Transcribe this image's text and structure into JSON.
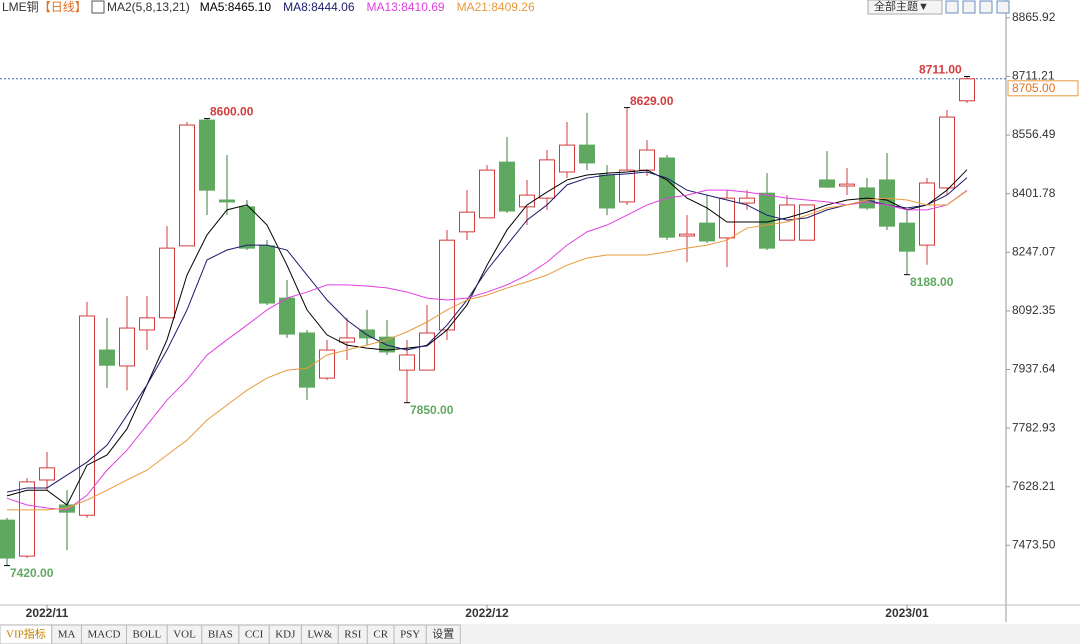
{
  "chart_data": {
    "type": "candlestick",
    "title": "LME铜",
    "period": "【日线】",
    "indicator": "MA2(5,8,13,21)",
    "categories": [
      null,
      null,
      "2022/11",
      null,
      null,
      null,
      null,
      null,
      null,
      null,
      null,
      null,
      null,
      null,
      null,
      null,
      null,
      null,
      null,
      null,
      null,
      null,
      null,
      null,
      "2022/12",
      null,
      null,
      null,
      null,
      null,
      null,
      null,
      null,
      null,
      null,
      null,
      null,
      null,
      null,
      null,
      null,
      null,
      null,
      null,
      null,
      "2023/01",
      null,
      null,
      null
    ],
    "open": [
      7540,
      7445,
      7646,
      7580,
      7553,
      7989,
      7947,
      8042,
      8074,
      8264,
      8596,
      8385,
      8367,
      8264,
      8126,
      8034,
      7915,
      8010,
      8042,
      8023,
      7936,
      7936,
      8042,
      8301,
      8338,
      8485,
      8367,
      8390,
      8459,
      8530,
      8451,
      8380,
      8464,
      8496,
      8290,
      8324,
      8285,
      8377,
      8403,
      8279,
      8279,
      8438,
      8422,
      8417,
      8438,
      8324,
      8266,
      8417,
      8647
    ],
    "high": [
      7546,
      7651,
      7720,
      7619,
      8116,
      8074,
      8132,
      8132,
      8316,
      8591,
      8600,
      8504,
      8385,
      8279,
      8174,
      8042,
      8016,
      8074,
      8095,
      8068,
      8016,
      8108,
      8306,
      8411,
      8477,
      8551,
      8438,
      8517,
      8591,
      8615,
      8477,
      8629,
      8543,
      8504,
      8345,
      8398,
      8411,
      8411,
      8456,
      8398,
      8372,
      8514,
      8470,
      8443,
      8509,
      8359,
      8443,
      8623,
      8711
    ],
    "low": [
      7420,
      7440,
      7619,
      7461,
      7546,
      7889,
      7883,
      7989,
      8074,
      8264,
      8345,
      8345,
      8253,
      8108,
      8021,
      7857,
      7910,
      7963,
      8002,
      7976,
      7850,
      7936,
      8016,
      8279,
      8338,
      8351,
      8319,
      8359,
      8443,
      8464,
      8345,
      8372,
      8448,
      8279,
      8221,
      8272,
      8208,
      8359,
      8253,
      8279,
      8279,
      8417,
      8398,
      8359,
      8306,
      8188,
      8214,
      8398,
      8641
    ],
    "close": [
      7440,
      7641,
      7678,
      7561,
      8079,
      7949,
      8047,
      8074,
      8258,
      8583,
      8411,
      8380,
      8258,
      8113,
      8031,
      7891,
      7989,
      8021,
      8021,
      7984,
      7976,
      8034,
      8279,
      8353,
      8464,
      8356,
      8398,
      8491,
      8530,
      8483,
      8364,
      8464,
      8517,
      8287,
      8295,
      8277,
      8390,
      8390,
      8258,
      8372,
      8372,
      8419,
      8427,
      8364,
      8316,
      8250,
      8430,
      8604,
      8705
    ],
    "up_color": "#d23c3c",
    "down_color": "#5fa85f",
    "series": [
      {
        "name": "MA5:8465.10",
        "color": "#000000",
        "values": [
          7604,
          7619,
          7619,
          7580,
          7685,
          7712,
          7781,
          7897,
          8016,
          8187,
          8293,
          8359,
          8372,
          8319,
          8213,
          8095,
          8029,
          8002,
          7994,
          7989,
          7994,
          8000,
          8042,
          8108,
          8213,
          8306,
          8372,
          8406,
          8438,
          8451,
          8456,
          8459,
          8464,
          8438,
          8390,
          8364,
          8327,
          8327,
          8327,
          8338,
          8353,
          8372,
          8385,
          8390,
          8385,
          8359,
          8372,
          8411,
          8465.1
        ]
      },
      {
        "name": "MA8:8444.06",
        "color": "#1c1c6e",
        "values": [
          7614,
          7625,
          7625,
          7659,
          7693,
          7738,
          7817,
          7897,
          7989,
          8095,
          8227,
          8253,
          8266,
          8266,
          8253,
          8187,
          8121,
          8068,
          8029,
          8002,
          7989,
          8002,
          8055,
          8121,
          8200,
          8266,
          8332,
          8372,
          8425,
          8443,
          8451,
          8454,
          8459,
          8443,
          8411,
          8398,
          8385,
          8372,
          8345,
          8332,
          8338,
          8359,
          8372,
          8385,
          8372,
          8364,
          8372,
          8398,
          8444.06
        ]
      },
      {
        "name": "MA13:8410.69",
        "color": "#e040e0",
        "values": [
          7598,
          7580,
          7572,
          7567,
          7606,
          7672,
          7725,
          7791,
          7857,
          7910,
          7976,
          8016,
          8055,
          8095,
          8126,
          8142,
          8161,
          8161,
          8158,
          8153,
          8142,
          8126,
          8121,
          8126,
          8142,
          8161,
          8187,
          8221,
          8266,
          8301,
          8319,
          8345,
          8372,
          8390,
          8398,
          8411,
          8411,
          8406,
          8398,
          8390,
          8385,
          8380,
          8372,
          8380,
          8372,
          8359,
          8359,
          8372,
          8410.69
        ]
      },
      {
        "name": "MA21:8409.26",
        "color": "#e89a3c",
        "values": [
          7567,
          7567,
          7567,
          7572,
          7593,
          7619,
          7646,
          7672,
          7712,
          7751,
          7804,
          7844,
          7883,
          7915,
          7936,
          7941,
          7976,
          7989,
          8002,
          8016,
          8037,
          8063,
          8095,
          8121,
          8134,
          8153,
          8169,
          8187,
          8213,
          8232,
          8240,
          8240,
          8240,
          8248,
          8258,
          8266,
          8279,
          8311,
          8319,
          8327,
          8345,
          8364,
          8372,
          8385,
          8390,
          8385,
          8372,
          8372,
          8409.26
        ]
      }
    ],
    "ylim": [
      7316,
      8913
    ],
    "yticks": [
      8865.92,
      8711.21,
      8556.49,
      8401.78,
      8247.07,
      8092.35,
      7937.64,
      7782.93,
      7628.21,
      {
        "value": 7473.5,
        "label": "7473.50"
      }
    ],
    "grid": false,
    "annotations": [
      {
        "value": 8600,
        "label": "8600.00"
      },
      {
        "value": 7420,
        "label": "7420.00"
      },
      {
        "value": 7850,
        "label": "7850.00"
      },
      {
        "value": 8629,
        "label": "8629.00"
      },
      {
        "value": 8188,
        "label": "8188.00"
      },
      {
        "value": 8711,
        "label": "8711.00"
      }
    ],
    "last_price": {
      "value": 8705,
      "label": "8705.00"
    }
  },
  "toolbar": {
    "theme": "全部主题▼",
    "tabs": [
      "VIP指标",
      "MA",
      "MACD",
      "BOLL",
      "VOL",
      "BIAS",
      "CCI",
      "KDJ",
      "LW&",
      "RSI",
      "CR",
      "PSY",
      "设置"
    ]
  }
}
